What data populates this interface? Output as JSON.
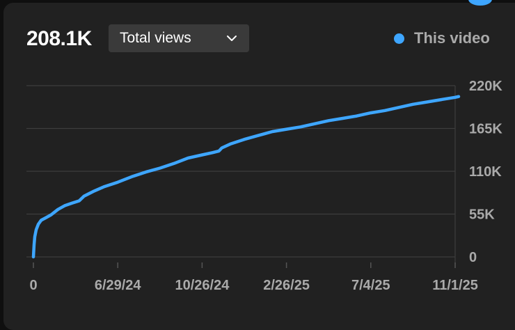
{
  "card": {
    "metric_value": "208.1K",
    "metric_select": {
      "label": "Total views",
      "icon": "chevron-down-icon"
    },
    "legend": {
      "label": "This video",
      "color": "#3ea6ff"
    }
  },
  "chart_data": {
    "type": "line",
    "title": "",
    "xlabel": "",
    "ylabel": "",
    "ylim": [
      0,
      220000
    ],
    "y_ticks": [
      0,
      55000,
      110000,
      165000,
      220000
    ],
    "y_tick_labels": [
      "0",
      "55K",
      "110K",
      "165K",
      "220K"
    ],
    "x_tick_labels": [
      "0",
      "6/29/24",
      "10/26/24",
      "2/26/25",
      "7/4/25",
      "11/1/25"
    ],
    "x_ticks": [
      0,
      120,
      240,
      360,
      480,
      600
    ],
    "xlim": [
      0,
      600
    ],
    "grid": true,
    "legend_position": "top-right",
    "series": [
      {
        "name": "This video",
        "color": "#3ea6ff",
        "points": [
          [
            0,
            0
          ],
          [
            1,
            16000
          ],
          [
            2,
            26000
          ],
          [
            4,
            35000
          ],
          [
            7,
            42000
          ],
          [
            11,
            47000
          ],
          [
            17,
            50000
          ],
          [
            25,
            54000
          ],
          [
            35,
            61000
          ],
          [
            45,
            66000
          ],
          [
            55,
            69000
          ],
          [
            65,
            72000
          ],
          [
            72,
            78000
          ],
          [
            85,
            84000
          ],
          [
            100,
            90000
          ],
          [
            120,
            96000
          ],
          [
            140,
            103000
          ],
          [
            160,
            109000
          ],
          [
            180,
            114000
          ],
          [
            200,
            120000
          ],
          [
            220,
            127000
          ],
          [
            240,
            131000
          ],
          [
            255,
            134000
          ],
          [
            264,
            136000
          ],
          [
            268,
            140000
          ],
          [
            280,
            145000
          ],
          [
            300,
            151000
          ],
          [
            320,
            156000
          ],
          [
            340,
            161000
          ],
          [
            360,
            164000
          ],
          [
            380,
            167000
          ],
          [
            400,
            171000
          ],
          [
            420,
            175000
          ],
          [
            440,
            178000
          ],
          [
            460,
            181000
          ],
          [
            480,
            185000
          ],
          [
            500,
            188000
          ],
          [
            520,
            192000
          ],
          [
            540,
            196000
          ],
          [
            560,
            199000
          ],
          [
            580,
            202000
          ],
          [
            600,
            205000
          ],
          [
            605,
            206000
          ]
        ]
      }
    ]
  }
}
